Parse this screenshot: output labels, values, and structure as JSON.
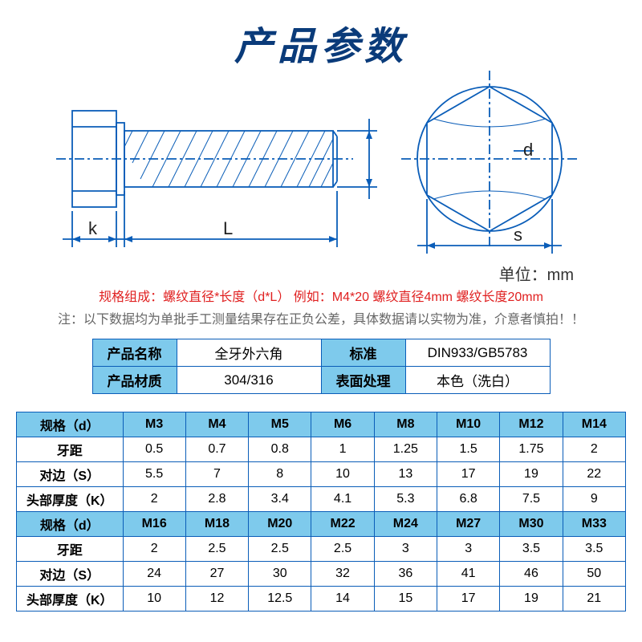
{
  "title": "产品参数",
  "diagram": {
    "labels": {
      "k": "k",
      "L": "L",
      "d": "d",
      "s": "s"
    },
    "unit": "单位：mm",
    "colors": {
      "stroke": "#0a5db8",
      "center": "#0a5db8",
      "dim": "#0a5db8",
      "text": "#222"
    },
    "stroke_width": 1.8
  },
  "notes": {
    "red": "规格组成：螺纹直径*长度（d*L）  例如：M4*20 螺纹直径4mm 螺纹长度20mm",
    "gray": "注：以下数据均为单批手工测量结果存在正负公差，具体数据请以实物为准，介意者慎拍！！"
  },
  "info": {
    "rows": [
      {
        "l1": "产品名称",
        "v1": "全牙外六角",
        "l2": "标准",
        "v2": "DIN933/GB5783"
      },
      {
        "l1": "产品材质",
        "v1": "304/316",
        "l2": "表面处理",
        "v2": "本色（洗白）"
      }
    ]
  },
  "spec": {
    "groups": [
      {
        "header": {
          "label": "规格（d）",
          "cols": [
            "M3",
            "M4",
            "M5",
            "M6",
            "M8",
            "M10",
            "M12",
            "M14"
          ]
        },
        "rows": [
          {
            "label": "牙距",
            "vals": [
              "0.5",
              "0.7",
              "0.8",
              "1",
              "1.25",
              "1.5",
              "1.75",
              "2"
            ]
          },
          {
            "label": "对边（S）",
            "vals": [
              "5.5",
              "7",
              "8",
              "10",
              "13",
              "17",
              "19",
              "22"
            ]
          },
          {
            "label": "头部厚度（K）",
            "vals": [
              "2",
              "2.8",
              "3.4",
              "4.1",
              "5.3",
              "6.8",
              "7.5",
              "9"
            ]
          }
        ]
      },
      {
        "header": {
          "label": "规格（d）",
          "cols": [
            "M16",
            "M18",
            "M20",
            "M22",
            "M24",
            "M27",
            "M30",
            "M33"
          ]
        },
        "rows": [
          {
            "label": "牙距",
            "vals": [
              "2",
              "2.5",
              "2.5",
              "2.5",
              "3",
              "3",
              "3.5",
              "3.5"
            ]
          },
          {
            "label": "对边（S）",
            "vals": [
              "24",
              "27",
              "30",
              "32",
              "36",
              "41",
              "46",
              "50"
            ]
          },
          {
            "label": "头部厚度（K）",
            "vals": [
              "10",
              "12",
              "12.5",
              "14",
              "15",
              "17",
              "19",
              "21"
            ]
          }
        ]
      }
    ]
  }
}
